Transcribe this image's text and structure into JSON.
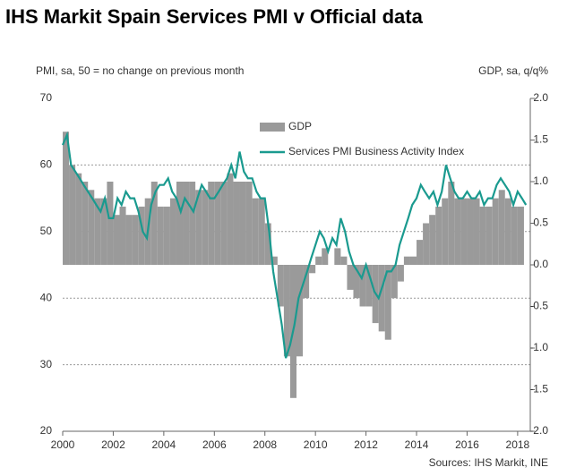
{
  "chart_data": {
    "type": "bar-line",
    "title": "IHS Markit Spain Services PMI v Official data",
    "y_label": "PMI, sa, 50 = no change on previous month",
    "y2_label": "GDP, sa, q/q%",
    "source": "Sources: IHS Markit, INE",
    "xlim": [
      2000,
      2018.5
    ],
    "xticks": [
      2000,
      2002,
      2004,
      2006,
      2008,
      2010,
      2012,
      2014,
      2016,
      2018
    ],
    "ylim": [
      20,
      70
    ],
    "yticks": [
      20,
      30,
      40,
      50,
      60,
      70
    ],
    "y2lim": [
      -2,
      2
    ],
    "y2ticks": [
      {
        "value": -2,
        "label": "-2.0"
      },
      -1.5,
      {
        "value": -1,
        "label": "-1.0"
      },
      -0.5,
      {
        "value": 0,
        "label": "0.0"
      },
      0.5,
      {
        "value": 1,
        "label": "1.0"
      },
      1.5,
      {
        "value": 2,
        "label": "2.0"
      }
    ],
    "grid": true,
    "legend": "top",
    "series": [
      {
        "name": "GDP",
        "type": "bar",
        "axis": "y2",
        "color": "#9a9a9a",
        "x": [
          2000.125,
          2000.375,
          2000.625,
          2000.875,
          2001.125,
          2001.375,
          2001.625,
          2001.875,
          2002.125,
          2002.375,
          2002.625,
          2002.875,
          2003.125,
          2003.375,
          2003.625,
          2003.875,
          2004.125,
          2004.375,
          2004.625,
          2004.875,
          2005.125,
          2005.375,
          2005.625,
          2005.875,
          2006.125,
          2006.375,
          2006.625,
          2006.875,
          2007.125,
          2007.375,
          2007.625,
          2007.875,
          2008.125,
          2008.375,
          2008.625,
          2008.875,
          2009.125,
          2009.375,
          2009.625,
          2009.875,
          2010.125,
          2010.375,
          2010.625,
          2010.875,
          2011.125,
          2011.375,
          2011.625,
          2011.875,
          2012.125,
          2012.375,
          2012.625,
          2012.875,
          2013.125,
          2013.375,
          2013.625,
          2013.875,
          2014.125,
          2014.375,
          2014.625,
          2014.875,
          2015.125,
          2015.375,
          2015.625,
          2015.875,
          2016.125,
          2016.375,
          2016.625,
          2016.875,
          2017.125,
          2017.375,
          2017.625,
          2017.875,
          2018.125
        ],
        "values": [
          1.6,
          1.2,
          1.1,
          1.0,
          0.9,
          0.8,
          0.8,
          1.0,
          0.6,
          0.7,
          0.6,
          0.6,
          0.7,
          0.8,
          1.0,
          0.7,
          0.7,
          0.8,
          1.0,
          1.0,
          1.0,
          0.9,
          0.9,
          1.0,
          1.0,
          1.0,
          1.1,
          1.0,
          1.0,
          1.0,
          0.8,
          0.8,
          0.5,
          0.1,
          -0.5,
          -1.1,
          -1.6,
          -1.1,
          -0.4,
          -0.1,
          0.1,
          0.2,
          0.0,
          0.2,
          0.1,
          -0.3,
          -0.4,
          -0.5,
          -0.5,
          -0.7,
          -0.8,
          -0.9,
          -0.4,
          -0.2,
          0.1,
          0.1,
          0.3,
          0.5,
          0.6,
          0.7,
          0.8,
          1.0,
          0.8,
          0.8,
          0.8,
          0.8,
          0.7,
          0.7,
          0.8,
          0.9,
          0.8,
          0.7,
          0.7
        ]
      },
      {
        "name": "Services PMI Business Activity Index",
        "type": "line",
        "axis": "y",
        "color": "#1a9a8f",
        "x": [
          2000,
          2000.17,
          2000.33,
          2000.5,
          2000.67,
          2000.83,
          2001,
          2001.17,
          2001.33,
          2001.5,
          2001.67,
          2001.83,
          2002,
          2002.17,
          2002.33,
          2002.5,
          2002.67,
          2002.83,
          2003,
          2003.17,
          2003.33,
          2003.5,
          2003.67,
          2003.83,
          2004,
          2004.17,
          2004.33,
          2004.5,
          2004.67,
          2004.83,
          2005,
          2005.17,
          2005.33,
          2005.5,
          2005.67,
          2005.83,
          2006,
          2006.17,
          2006.33,
          2006.5,
          2006.67,
          2006.83,
          2007,
          2007.17,
          2007.33,
          2007.5,
          2007.67,
          2007.83,
          2008,
          2008.17,
          2008.33,
          2008.5,
          2008.67,
          2008.83,
          2009,
          2009.17,
          2009.33,
          2009.5,
          2009.67,
          2009.83,
          2010,
          2010.17,
          2010.33,
          2010.5,
          2010.67,
          2010.83,
          2011,
          2011.17,
          2011.33,
          2011.5,
          2011.67,
          2011.83,
          2012,
          2012.17,
          2012.33,
          2012.5,
          2012.67,
          2012.83,
          2013,
          2013.17,
          2013.33,
          2013.5,
          2013.67,
          2013.83,
          2014,
          2014.17,
          2014.33,
          2014.5,
          2014.67,
          2014.83,
          2015,
          2015.17,
          2015.33,
          2015.5,
          2015.67,
          2015.83,
          2016,
          2016.17,
          2016.33,
          2016.5,
          2016.67,
          2016.83,
          2017,
          2017.17,
          2017.33,
          2017.5,
          2017.67,
          2017.83,
          2018,
          2018.17,
          2018.33
        ],
        "values": [
          63,
          64.5,
          60,
          59,
          58,
          57,
          56,
          55,
          54,
          53,
          55,
          52,
          52,
          55,
          54,
          56,
          55,
          55,
          53,
          50,
          49,
          54,
          56,
          57,
          57,
          58,
          56,
          55,
          53,
          55,
          54,
          53,
          55,
          57,
          56,
          55,
          55,
          56,
          57,
          58,
          60,
          58,
          62,
          59,
          58,
          58,
          56,
          55,
          55,
          50,
          44,
          40,
          36,
          31,
          33,
          36,
          40,
          42,
          44,
          46,
          48,
          50,
          49,
          47,
          49,
          48,
          52,
          50,
          47,
          45,
          44,
          43,
          45,
          43,
          41,
          40,
          42,
          44,
          44,
          45,
          48,
          50,
          52,
          54,
          55,
          57,
          56,
          55,
          56,
          54,
          56,
          60,
          58,
          56,
          55,
          55,
          56,
          55,
          55,
          56,
          54,
          55,
          55,
          57,
          58,
          57,
          56,
          54,
          56,
          55,
          54
        ]
      }
    ]
  }
}
